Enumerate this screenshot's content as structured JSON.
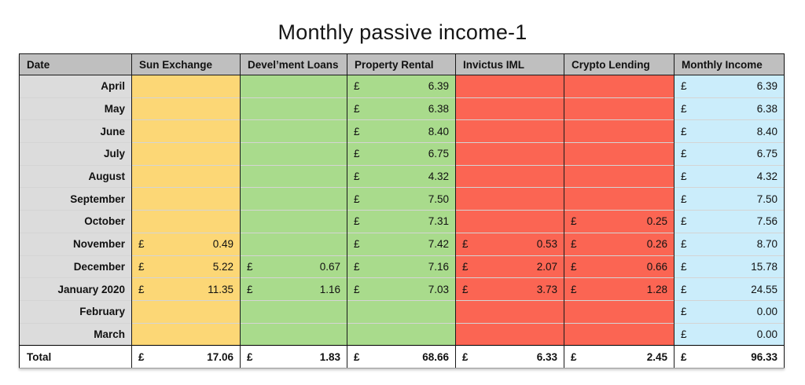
{
  "chart_data": {
    "type": "table",
    "title": "Monthly passive income-1",
    "currency_symbol": "£",
    "colors": {
      "header_bg": "#BFBFBF",
      "date_column_bg": "#DCDCDC",
      "sun_exchange_bg": "#FCD776",
      "loans_and_rental_bg": "#A9DB8C",
      "invictus_and_crypto_bg": "#FB6553",
      "monthly_income_bg": "#CBEDFB",
      "total_row_bg": "#FFFFFF",
      "text": "#111111"
    },
    "columns": [
      {
        "key": "date",
        "label": "Date"
      },
      {
        "key": "sun_exchange",
        "label": "Sun Exchange",
        "color": "#FCD776"
      },
      {
        "key": "develment_loans",
        "label": "Devel’ment Loans",
        "color": "#A9DB8C"
      },
      {
        "key": "property_rental",
        "label": "Property Rental",
        "color": "#A9DB8C"
      },
      {
        "key": "invictus_iml",
        "label": "Invictus IML",
        "color": "#FB6553"
      },
      {
        "key": "crypto_lending",
        "label": "Crypto Lending",
        "color": "#FB6553"
      },
      {
        "key": "monthly_income",
        "label": "Monthly Income",
        "color": "#CBEDFB"
      }
    ],
    "rows": [
      {
        "date": "April",
        "sun_exchange": null,
        "develment_loans": null,
        "property_rental": "6.39",
        "invictus_iml": null,
        "crypto_lending": null,
        "monthly_income": "6.39"
      },
      {
        "date": "May",
        "sun_exchange": null,
        "develment_loans": null,
        "property_rental": "6.38",
        "invictus_iml": null,
        "crypto_lending": null,
        "monthly_income": "6.38"
      },
      {
        "date": "June",
        "sun_exchange": null,
        "develment_loans": null,
        "property_rental": "8.40",
        "invictus_iml": null,
        "crypto_lending": null,
        "monthly_income": "8.40"
      },
      {
        "date": "July",
        "sun_exchange": null,
        "develment_loans": null,
        "property_rental": "6.75",
        "invictus_iml": null,
        "crypto_lending": null,
        "monthly_income": "6.75"
      },
      {
        "date": "August",
        "sun_exchange": null,
        "develment_loans": null,
        "property_rental": "4.32",
        "invictus_iml": null,
        "crypto_lending": null,
        "monthly_income": "4.32"
      },
      {
        "date": "September",
        "sun_exchange": null,
        "develment_loans": null,
        "property_rental": "7.50",
        "invictus_iml": null,
        "crypto_lending": null,
        "monthly_income": "7.50"
      },
      {
        "date": "October",
        "sun_exchange": null,
        "develment_loans": null,
        "property_rental": "7.31",
        "invictus_iml": null,
        "crypto_lending": "0.25",
        "monthly_income": "7.56"
      },
      {
        "date": "November",
        "sun_exchange": "0.49",
        "develment_loans": null,
        "property_rental": "7.42",
        "invictus_iml": "0.53",
        "crypto_lending": "0.26",
        "monthly_income": "8.70"
      },
      {
        "date": "December",
        "sun_exchange": "5.22",
        "develment_loans": "0.67",
        "property_rental": "7.16",
        "invictus_iml": "2.07",
        "crypto_lending": "0.66",
        "monthly_income": "15.78"
      },
      {
        "date": "January 2020",
        "sun_exchange": "11.35",
        "develment_loans": "1.16",
        "property_rental": "7.03",
        "invictus_iml": "3.73",
        "crypto_lending": "1.28",
        "monthly_income": "24.55"
      },
      {
        "date": "February",
        "sun_exchange": null,
        "develment_loans": null,
        "property_rental": null,
        "invictus_iml": null,
        "crypto_lending": null,
        "monthly_income": "0.00"
      },
      {
        "date": "March",
        "sun_exchange": null,
        "develment_loans": null,
        "property_rental": null,
        "invictus_iml": null,
        "crypto_lending": null,
        "monthly_income": "0.00"
      }
    ],
    "total": {
      "label": "Total",
      "sun_exchange": "17.06",
      "develment_loans": "1.83",
      "property_rental": "68.66",
      "invictus_iml": "6.33",
      "crypto_lending": "2.45",
      "monthly_income": "96.33"
    }
  }
}
